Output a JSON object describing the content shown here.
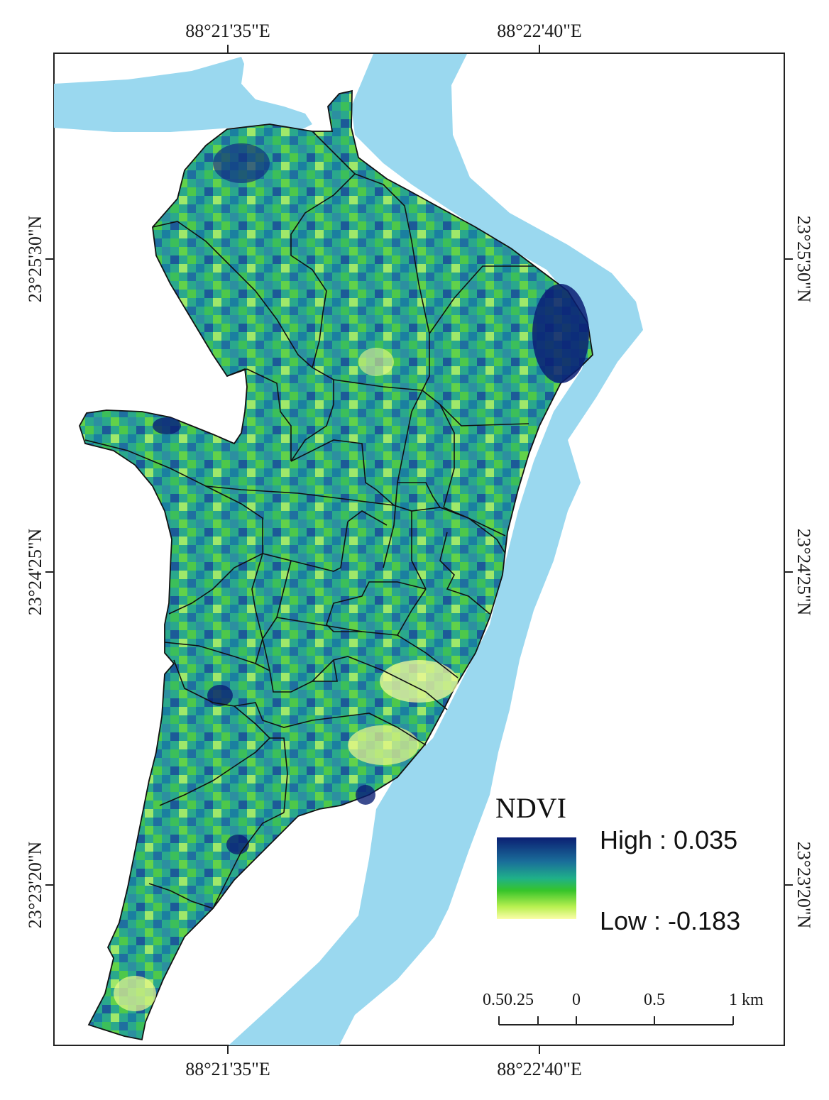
{
  "map": {
    "top_labels": [
      "88°21'35\"E",
      "88°22'40\"E"
    ],
    "bottom_labels": [
      "88°21'35\"E",
      "88°22'40\"E"
    ],
    "left_labels": [
      "23°25'30\"N",
      "23°24'25\"N",
      "23°23'20\"N"
    ],
    "right_labels": [
      "23°25'30\"N",
      "23°24'25\"N",
      "23°23'20\"N"
    ],
    "colors": {
      "river": "#9ad8ef",
      "ndvi_high": "#0b1f73",
      "ndvi_mid": "#1aa8a0",
      "ndvi_green": "#2fc23a",
      "ndvi_low": "#fbfda8"
    }
  },
  "legend": {
    "title": "NDVI",
    "high_label": "High : 0.035",
    "low_label": "Low : -0.183"
  },
  "scale_bar": {
    "ticks": [
      "0.50.25",
      "0",
      "0.5",
      "1 km"
    ]
  }
}
